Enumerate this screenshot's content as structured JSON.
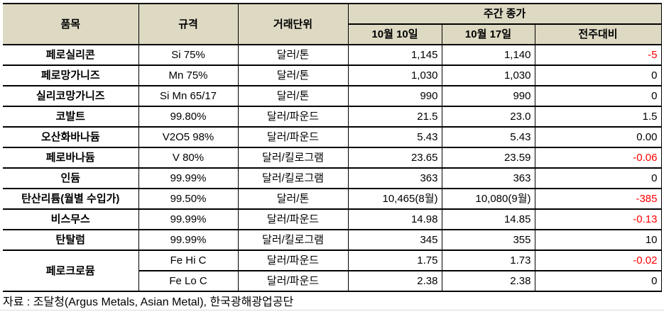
{
  "colors": {
    "header_bg": "#DDD9C3",
    "negative_value": "#FF0000",
    "border": "#000000",
    "text": "#000000"
  },
  "table": {
    "headers": {
      "item": "품목",
      "spec": "규격",
      "unit": "거래단위",
      "weekly_close": "주간 종가",
      "date1": "10월 10일",
      "date2": "10월 17일",
      "wow": "전주대비"
    },
    "rows": [
      {
        "item": "페로실리콘",
        "item_rowspan": 1,
        "spec": "Si 75%",
        "unit": "달러/톤",
        "d1": "1,145",
        "d2": "1,140",
        "chg": "-5",
        "neg": true
      },
      {
        "item": "페로망가니즈",
        "item_rowspan": 1,
        "spec": "Mn 75%",
        "unit": "달러/톤",
        "d1": "1,030",
        "d2": "1,030",
        "chg": "0",
        "neg": false
      },
      {
        "item": "실리코망가니즈",
        "item_rowspan": 1,
        "spec": "Si Mn 65/17",
        "unit": "달러/톤",
        "d1": "990",
        "d2": "990",
        "chg": "0",
        "neg": false
      },
      {
        "item": "코발트",
        "item_rowspan": 1,
        "spec": "99.80%",
        "unit": "달러/파운드",
        "d1": "21.5",
        "d2": "23.0",
        "chg": "1.5",
        "neg": false
      },
      {
        "item": "오산화바나듐",
        "item_rowspan": 1,
        "spec": "V2O5 98%",
        "unit": "달러/파운드",
        "d1": "5.43",
        "d2": "5.43",
        "chg": "0.00",
        "neg": false
      },
      {
        "item": "페로바나듐",
        "item_rowspan": 1,
        "spec": "V 80%",
        "unit": "달러/킬로그램",
        "d1": "23.65",
        "d2": "23.59",
        "chg": "-0.06",
        "neg": true
      },
      {
        "item": "인듐",
        "item_rowspan": 1,
        "spec": "99.99%",
        "unit": "달러/킬로그램",
        "d1": "363",
        "d2": "363",
        "chg": "0",
        "neg": false
      },
      {
        "item": "탄산리튬(월별 수입가)",
        "item_rowspan": 1,
        "spec": "99.50%",
        "unit": "달러/톤",
        "d1": "10,465(8월)",
        "d2": "10,080(9월)",
        "chg": "-385",
        "neg": true
      },
      {
        "item": "비스무스",
        "item_rowspan": 1,
        "spec": "99.99%",
        "unit": "달러/파운드",
        "d1": "14.98",
        "d2": "14.85",
        "chg": "-0.13",
        "neg": true
      },
      {
        "item": "탄탈럼",
        "item_rowspan": 1,
        "spec": "99.99%",
        "unit": "달러/킬로그램",
        "d1": "345",
        "d2": "355",
        "chg": "10",
        "neg": false
      },
      {
        "item": "페로크로뮴",
        "item_rowspan": 2,
        "spec": "Fe Hi C",
        "unit": "달러/파운드",
        "d1": "1.75",
        "d2": "1.73",
        "chg": "-0.02",
        "neg": true
      },
      {
        "item": null,
        "item_rowspan": 0,
        "spec": "Fe Lo C",
        "unit": "달러/파운드",
        "d1": "2.38",
        "d2": "2.38",
        "chg": "0",
        "neg": false
      }
    ]
  },
  "footer": {
    "source": "자료 : 조달청(Argus Metals, Asian Metal), 한국광해광업공단"
  }
}
